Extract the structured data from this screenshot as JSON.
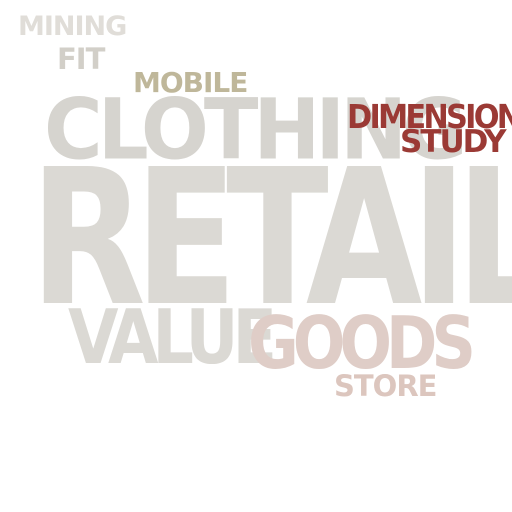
{
  "words": [
    {
      "text": "MINING",
      "color": "#e0ddd8"
    },
    {
      "text": "FIT",
      "color": "#d2cfc8"
    },
    {
      "text": "MOBILE",
      "color": "#bfb79a"
    },
    {
      "text": "CLOTHING",
      "color": "#d6d4cf"
    },
    {
      "text": "DIMENSIONS",
      "color": "#9b3a35"
    },
    {
      "text": "STUDY",
      "color": "#9b3a35"
    },
    {
      "text": "RETAIL",
      "color": "#dbd9d4"
    },
    {
      "text": "VALUE",
      "color": "#dbd9d4"
    },
    {
      "text": "GOODS",
      "color": "#dfcdc7"
    },
    {
      "text": "STORE",
      "color": "#dcc6be"
    }
  ]
}
